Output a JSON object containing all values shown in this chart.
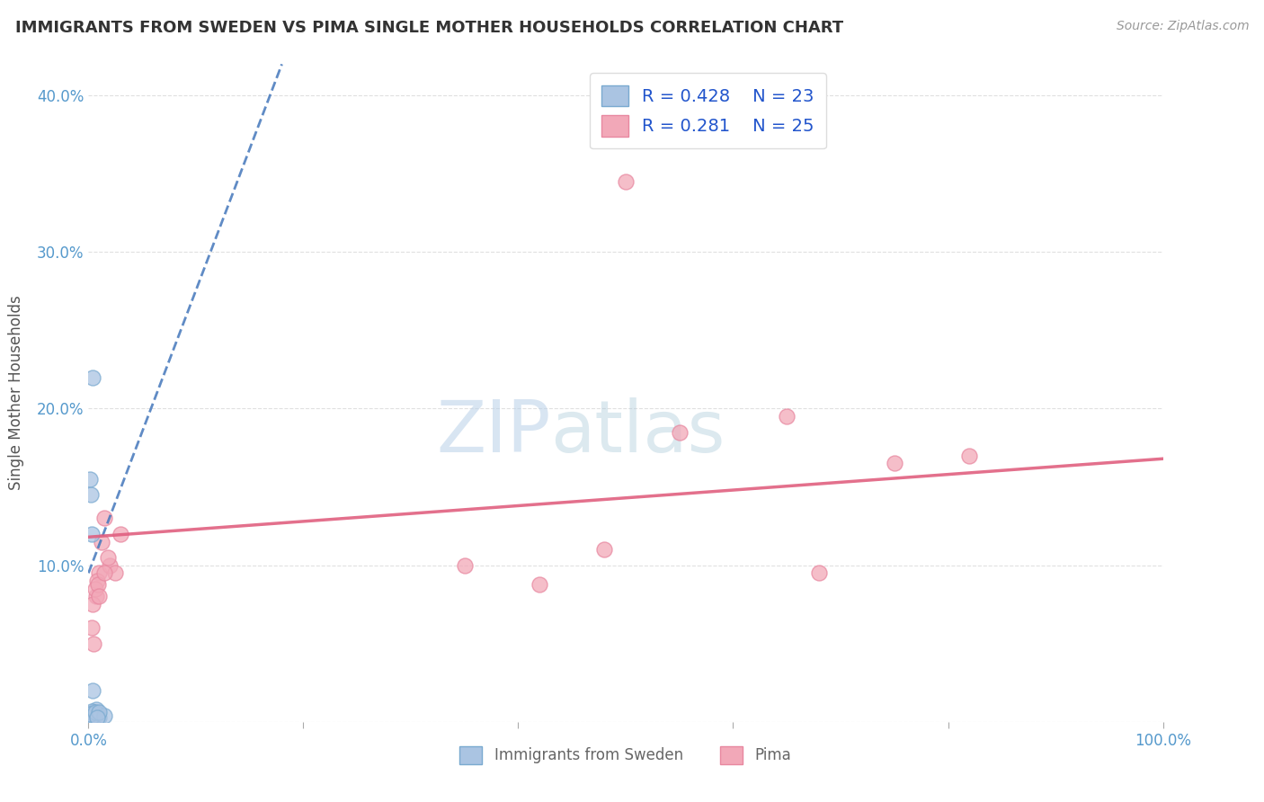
{
  "title": "IMMIGRANTS FROM SWEDEN VS PIMA SINGLE MOTHER HOUSEHOLDS CORRELATION CHART",
  "source": "Source: ZipAtlas.com",
  "ylabel": "Single Mother Households",
  "watermark_zip": "ZIP",
  "watermark_atlas": "atlas",
  "ylim": [
    0.0,
    0.42
  ],
  "xlim": [
    0.0,
    1.0
  ],
  "yticks": [
    0.0,
    0.1,
    0.2,
    0.3,
    0.4
  ],
  "ytick_labels": [
    "",
    "10.0%",
    "20.0%",
    "30.0%",
    "40.0%"
  ],
  "blue_R": 0.428,
  "blue_N": 23,
  "pink_R": 0.281,
  "pink_N": 25,
  "blue_color": "#aac4e2",
  "pink_color": "#f2a8b8",
  "blue_edge": "#7aaad0",
  "pink_edge": "#e888a0",
  "trend_blue_color": "#4477bb",
  "trend_pink_color": "#e06080",
  "background": "#ffffff",
  "grid_color": "#cccccc",
  "blue_scatter_x": [
    0.001,
    0.002,
    0.003,
    0.004,
    0.005,
    0.006,
    0.007,
    0.008,
    0.009,
    0.01,
    0.003,
    0.004,
    0.005,
    0.002,
    0.001,
    0.006,
    0.003,
    0.002,
    0.004,
    0.001,
    0.015,
    0.01,
    0.008
  ],
  "blue_scatter_y": [
    0.005,
    0.003,
    0.004,
    0.02,
    0.006,
    0.004,
    0.008,
    0.003,
    0.005,
    0.003,
    0.007,
    0.004,
    0.005,
    0.003,
    0.005,
    0.006,
    0.12,
    0.145,
    0.22,
    0.155,
    0.004,
    0.006,
    0.003
  ],
  "pink_scatter_x": [
    0.003,
    0.005,
    0.007,
    0.01,
    0.012,
    0.015,
    0.008,
    0.006,
    0.004,
    0.009,
    0.02,
    0.025,
    0.03,
    0.018,
    0.5,
    0.65,
    0.75,
    0.82,
    0.35,
    0.55,
    0.68,
    0.48,
    0.42,
    0.015,
    0.01
  ],
  "pink_scatter_y": [
    0.06,
    0.05,
    0.08,
    0.095,
    0.115,
    0.13,
    0.09,
    0.085,
    0.075,
    0.088,
    0.1,
    0.095,
    0.12,
    0.105,
    0.345,
    0.195,
    0.165,
    0.17,
    0.1,
    0.185,
    0.095,
    0.11,
    0.088,
    0.095,
    0.08
  ],
  "blue_trend_x0": 0.0,
  "blue_trend_y0": 0.095,
  "blue_trend_x1": 0.18,
  "blue_trend_y1": 0.42,
  "pink_trend_x0": 0.0,
  "pink_trend_y0": 0.118,
  "pink_trend_x1": 1.0,
  "pink_trend_y1": 0.168
}
